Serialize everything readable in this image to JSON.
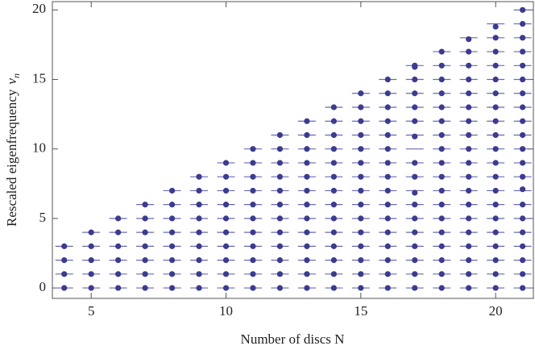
{
  "chart_data": {
    "type": "scatter",
    "x_label": "Number of discs N",
    "y_label": "Rescaled eigenfrequency",
    "y_label_symbol": "ν",
    "y_label_subscript": "n",
    "xlim": [
      3.56,
      21.4
    ],
    "ylim": [
      -0.75,
      20.6
    ],
    "xticks": [
      5,
      10,
      15,
      20
    ],
    "yticks": [
      0,
      5,
      10,
      15,
      20
    ],
    "dot_color": "#3b3b8f",
    "level_color": "#6a6ab0",
    "columns": [
      {
        "x": 4,
        "levels": [
          0,
          1,
          2,
          3
        ],
        "values": [
          0,
          1,
          2,
          3
        ]
      },
      {
        "x": 5,
        "levels": [
          0,
          1,
          2,
          3,
          4
        ],
        "values": [
          0,
          1,
          2,
          3,
          4
        ]
      },
      {
        "x": 6,
        "levels": [
          0,
          1,
          2,
          3,
          4,
          5
        ],
        "values": [
          0,
          1,
          2,
          3,
          4,
          5
        ]
      },
      {
        "x": 7,
        "levels": [
          0,
          1,
          2,
          3,
          4,
          5,
          6
        ],
        "values": [
          0,
          1,
          2,
          3,
          4,
          5,
          6
        ]
      },
      {
        "x": 8,
        "levels": [
          0,
          1,
          2,
          3,
          4,
          5,
          6,
          7
        ],
        "values": [
          0,
          1,
          2,
          3,
          4,
          5,
          6,
          7
        ]
      },
      {
        "x": 9,
        "levels": [
          0,
          1,
          2,
          3,
          4,
          5,
          6,
          7,
          8
        ],
        "values": [
          0,
          1,
          2,
          3,
          4,
          5,
          6,
          7,
          8
        ]
      },
      {
        "x": 10,
        "levels": [
          0,
          1,
          2,
          3,
          4,
          5,
          6,
          7,
          8,
          9
        ],
        "values": [
          0,
          1,
          2,
          3,
          4,
          5,
          6,
          7,
          8,
          9
        ]
      },
      {
        "x": 11,
        "levels": [
          0,
          1,
          2,
          3,
          4,
          5,
          6,
          7,
          8,
          9,
          10
        ],
        "values": [
          0,
          1,
          2,
          3,
          4,
          5,
          6,
          7,
          8,
          9,
          10
        ]
      },
      {
        "x": 12,
        "levels": [
          0,
          1,
          2,
          3,
          4,
          5,
          6,
          7,
          8,
          9,
          10,
          11
        ],
        "values": [
          0,
          1,
          2,
          3,
          4,
          5,
          6,
          7,
          8,
          9,
          10,
          11
        ]
      },
      {
        "x": 13,
        "levels": [
          0,
          1,
          2,
          3,
          4,
          5,
          6,
          7,
          8,
          9,
          10,
          11,
          12
        ],
        "values": [
          0,
          1,
          2,
          3,
          4,
          5,
          6,
          7,
          8,
          9,
          10,
          11,
          12
        ]
      },
      {
        "x": 14,
        "levels": [
          0,
          1,
          2,
          3,
          4,
          5,
          6,
          7,
          8,
          9,
          10,
          11,
          12,
          13
        ],
        "values": [
          0,
          1,
          2,
          3,
          4,
          5,
          6,
          7,
          8,
          9,
          10,
          11,
          12,
          13
        ]
      },
      {
        "x": 15,
        "levels": [
          0,
          1,
          2,
          3,
          4,
          5,
          6,
          7,
          8,
          9,
          10,
          11,
          12,
          13,
          14
        ],
        "values": [
          0,
          1,
          2,
          3,
          4,
          5,
          6,
          7,
          8,
          9,
          10,
          11,
          12,
          13,
          14
        ]
      },
      {
        "x": 16,
        "levels": [
          0,
          1,
          2,
          3,
          4,
          5,
          6,
          7,
          8,
          9,
          10,
          11,
          12,
          13,
          14,
          15
        ],
        "values": [
          0,
          1,
          2,
          3,
          4,
          5,
          6,
          7,
          8,
          9,
          10,
          11,
          12,
          13,
          14,
          15
        ]
      },
      {
        "x": 17,
        "levels": [
          0,
          1,
          2,
          3,
          4,
          5,
          6,
          7,
          8,
          9,
          10,
          11,
          12,
          13,
          14,
          15,
          16
        ],
        "values": [
          0,
          1,
          2,
          3,
          4,
          5,
          6,
          6.85,
          8,
          9,
          10.9,
          12,
          13,
          14,
          15,
          15.9,
          16
        ]
      },
      {
        "x": 18,
        "levels": [
          0,
          1,
          2,
          3,
          4,
          5,
          6,
          7,
          8,
          9,
          10,
          11,
          12,
          13,
          14,
          15,
          16,
          17
        ],
        "values": [
          0,
          1,
          2,
          3,
          4,
          5,
          6,
          7,
          8,
          9,
          10,
          11,
          12,
          13,
          14,
          15,
          16,
          17
        ]
      },
      {
        "x": 19,
        "levels": [
          0,
          1,
          2,
          3,
          4,
          5,
          6,
          7,
          8,
          9,
          10,
          11,
          12,
          13,
          14,
          15,
          16,
          17,
          18
        ],
        "values": [
          0,
          1,
          2,
          3,
          4,
          5,
          6,
          7,
          8,
          9,
          10,
          11,
          12,
          13,
          14,
          15,
          16,
          17,
          17.9
        ]
      },
      {
        "x": 20,
        "levels": [
          0,
          1,
          2,
          3,
          4,
          5,
          6,
          7,
          8,
          9,
          10,
          11,
          12,
          13,
          14,
          15,
          16,
          17,
          18,
          19
        ],
        "values": [
          0,
          1,
          2,
          3,
          4,
          5,
          6,
          7,
          8,
          9,
          10,
          11,
          12,
          13,
          14,
          15,
          16,
          17,
          18,
          18.8
        ]
      },
      {
        "x": 21,
        "levels": [
          0,
          1,
          2,
          3,
          4,
          5,
          6,
          7,
          8,
          9,
          10,
          11,
          12,
          13,
          14,
          15,
          16,
          17,
          18,
          19,
          20
        ],
        "values": [
          0,
          1,
          2,
          3,
          4,
          5,
          6,
          7.1,
          8,
          9,
          10,
          11,
          12,
          13,
          14,
          15,
          16,
          17,
          18,
          19,
          20
        ]
      }
    ]
  }
}
